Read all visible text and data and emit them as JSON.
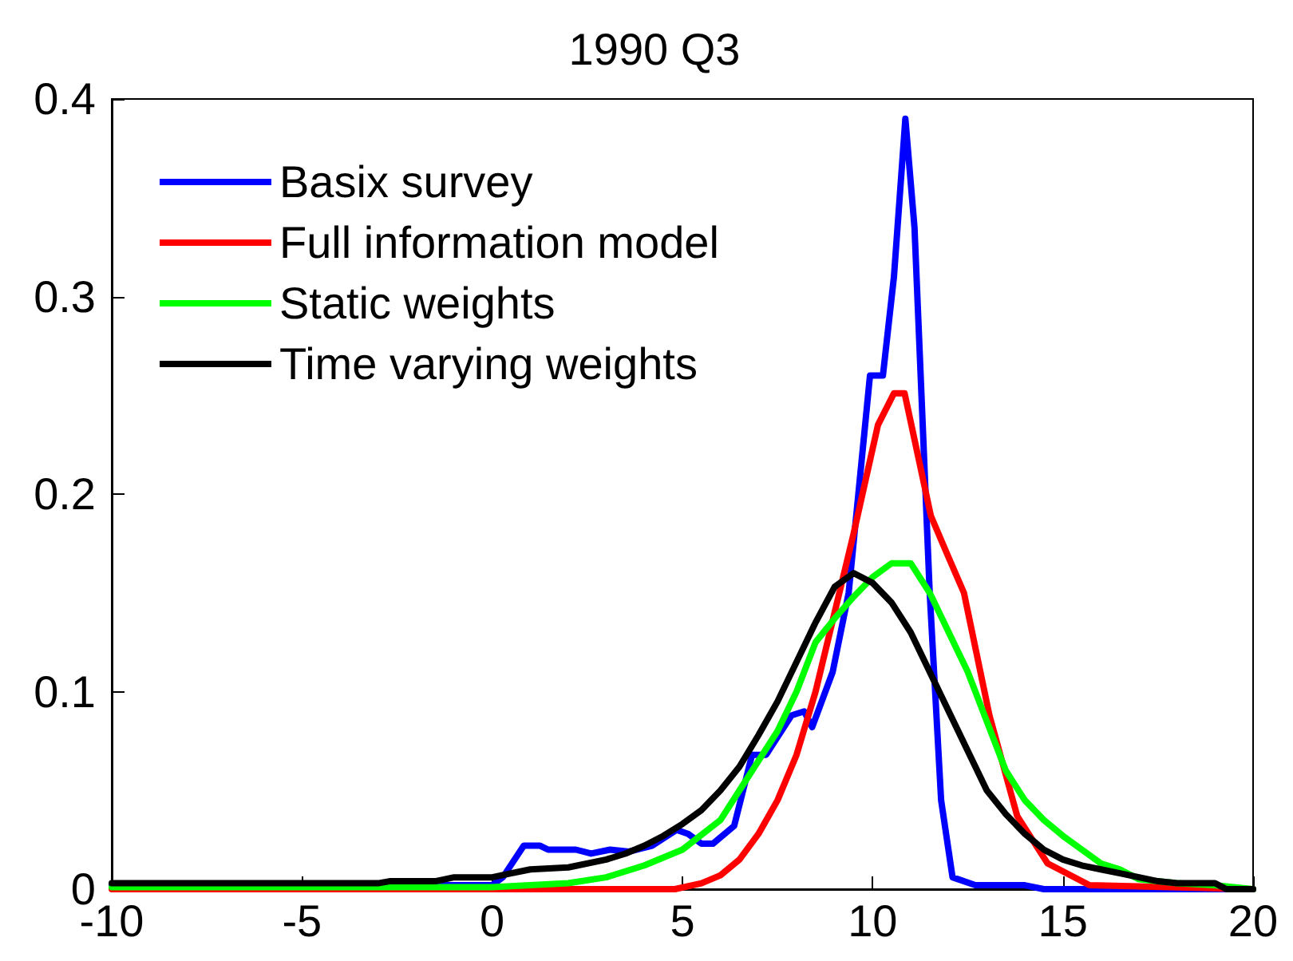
{
  "chart_data": {
    "type": "line",
    "title": "1990 Q3",
    "xlim": [
      -10,
      20
    ],
    "xticks": [
      -10,
      -5,
      0,
      5,
      10,
      15,
      20
    ],
    "ylim": [
      0,
      0.4
    ],
    "yticks": [
      0,
      0.1,
      0.2,
      0.3,
      0.4
    ],
    "grid": false,
    "legend": "top left",
    "marker": "none",
    "line_style": "solid",
    "series": [
      {
        "name": "Basix survey",
        "color": "#0000ff",
        "x": [
          -10,
          -5,
          0,
          0.28,
          0.83,
          1.26,
          1.47,
          2.2,
          2.6,
          3.1,
          3.6,
          4.2,
          4.85,
          5.15,
          5.5,
          5.8,
          6.36,
          6.83,
          7.2,
          7.87,
          8.2,
          8.41,
          8.95,
          9.37,
          9.93,
          10.27,
          10.56,
          10.86,
          11.1,
          11.5,
          11.8,
          12.1,
          12.7,
          14,
          14.5,
          20
        ],
        "values": [
          0.002,
          0.002,
          0.002,
          0.006,
          0.022,
          0.022,
          0.02,
          0.02,
          0.018,
          0.02,
          0.019,
          0.022,
          0.03,
          0.028,
          0.023,
          0.023,
          0.032,
          0.068,
          0.068,
          0.088,
          0.09,
          0.082,
          0.11,
          0.15,
          0.26,
          0.26,
          0.31,
          0.39,
          0.335,
          0.15,
          0.045,
          0.006,
          0.002,
          0.002,
          0,
          0
        ]
      },
      {
        "name": "Full information model",
        "color": "#ff0000",
        "x": [
          -10,
          2,
          4.8,
          5.5,
          6,
          6.5,
          7,
          7.5,
          8,
          8.5,
          9,
          9.5,
          10.14,
          10.56,
          10.84,
          11.53,
          11.95,
          12.4,
          13.07,
          13.8,
          14.6,
          15.7,
          20
        ],
        "values": [
          0,
          0,
          0,
          0.003,
          0.007,
          0.015,
          0.028,
          0.045,
          0.068,
          0.1,
          0.14,
          0.18,
          0.235,
          0.251,
          0.251,
          0.189,
          0.17,
          0.15,
          0.088,
          0.037,
          0.013,
          0.002,
          0
        ]
      },
      {
        "name": "Static weights",
        "color": "#00ff00",
        "x": [
          -10,
          0,
          2,
          3,
          4,
          5,
          6,
          6.5,
          7,
          7.5,
          8,
          8.5,
          9,
          9.5,
          10,
          10.5,
          11,
          11.5,
          12,
          12.5,
          13,
          13.5,
          14,
          14.5,
          15,
          15.5,
          16,
          16.5,
          17,
          18,
          19,
          20
        ],
        "values": [
          0.001,
          0.001,
          0.003,
          0.006,
          0.012,
          0.02,
          0.035,
          0.05,
          0.065,
          0.08,
          0.1,
          0.125,
          0.137,
          0.148,
          0.158,
          0.165,
          0.165,
          0.15,
          0.13,
          0.11,
          0.085,
          0.06,
          0.045,
          0.035,
          0.027,
          0.02,
          0.013,
          0.01,
          0.005,
          0.003,
          0.002,
          0
        ]
      },
      {
        "name": "Time varying weights",
        "color": "#000000",
        "x": [
          -10,
          -3,
          -2.7,
          -1.5,
          -1,
          0,
          0.5,
          1,
          2,
          3,
          3.5,
          4,
          4.5,
          5,
          5.5,
          6,
          6.5,
          7,
          7.5,
          8,
          8.5,
          9,
          9.5,
          10,
          10.5,
          11,
          11.5,
          12,
          12.5,
          13,
          13.5,
          14,
          14.5,
          15,
          15.5,
          16,
          16.5,
          17,
          17.5,
          18,
          19,
          19.3,
          20
        ],
        "values": [
          0.003,
          0.003,
          0.004,
          0.004,
          0.006,
          0.006,
          0.008,
          0.01,
          0.011,
          0.015,
          0.018,
          0.022,
          0.027,
          0.033,
          0.04,
          0.05,
          0.062,
          0.078,
          0.095,
          0.115,
          0.135,
          0.153,
          0.16,
          0.155,
          0.145,
          0.13,
          0.11,
          0.09,
          0.07,
          0.05,
          0.038,
          0.028,
          0.02,
          0.015,
          0.012,
          0.01,
          0.008,
          0.006,
          0.004,
          0.003,
          0.003,
          0,
          0
        ]
      }
    ]
  }
}
